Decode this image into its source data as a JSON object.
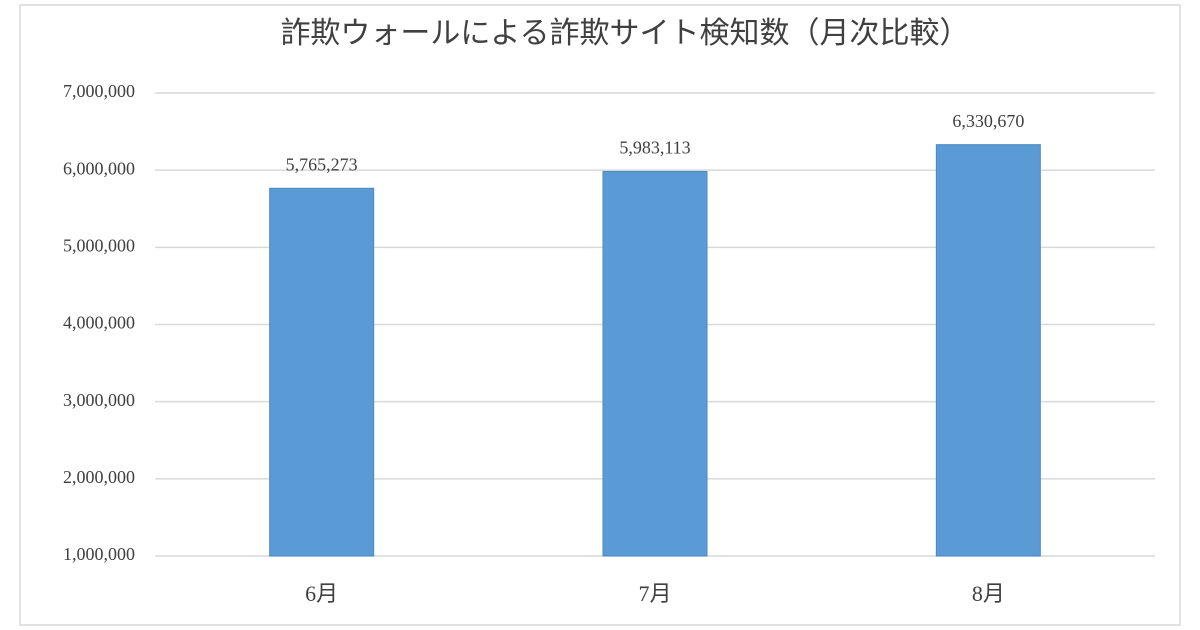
{
  "chart_data": {
    "type": "bar",
    "title": "詐欺ウォールによる詐欺サイト検知数（月次比較）",
    "categories": [
      "6月",
      "7月",
      "8月"
    ],
    "values": [
      5765273,
      5983113,
      6330670
    ],
    "value_labels": [
      "5,765,273",
      "5,983,113",
      "6,330,670"
    ],
    "color": "#5b9bd5",
    "ylim": [
      1000000,
      7000000
    ],
    "yticks": [
      {
        "value": 1000000,
        "label": "1,000,000"
      },
      {
        "value": 2000000,
        "label": "2,000,000"
      },
      {
        "value": 3000000,
        "label": "3,000,000"
      },
      {
        "value": 4000000,
        "label": "4,000,000"
      },
      {
        "value": 5000000,
        "label": "5,000,000"
      },
      {
        "value": 6000000,
        "label": "6,000,000"
      },
      {
        "value": 7000000,
        "label": "7,000,000"
      }
    ],
    "grid": true
  }
}
